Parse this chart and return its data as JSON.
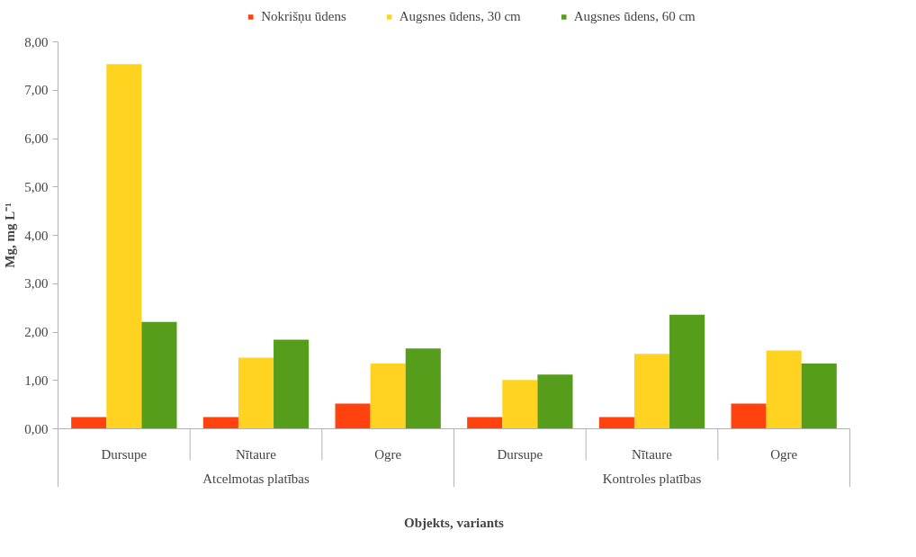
{
  "chart_data": {
    "type": "bar",
    "xlabel": "Objekts, variants",
    "ylabel": "Mg, mg L⁻¹",
    "categories": [
      "Dursupe",
      "Nītaure",
      "Ogre",
      "Dursupe",
      "Nītaure",
      "Ogre"
    ],
    "series": [
      {
        "name": "Nokrišņu ūdens",
        "color": "#ff420e",
        "values": [
          0.24,
          0.24,
          0.52,
          0.24,
          0.24,
          0.52
        ]
      },
      {
        "name": "Augsnes ūdens, 30 cm",
        "color": "#ffd320",
        "values": [
          7.54,
          1.47,
          1.35,
          1.01,
          1.55,
          1.62
        ]
      },
      {
        "name": "Augsnes ūdens, 60 cm",
        "color": "#579d1c",
        "values": [
          2.21,
          1.84,
          1.66,
          1.12,
          2.36,
          1.35
        ]
      }
    ],
    "annotations": [
      "Atcelmotas platības",
      "Kontroles platības"
    ],
    "ylim": [
      0,
      8
    ],
    "yticks": [
      {
        "value": 0,
        "label": "0,00"
      },
      {
        "value": 1,
        "label": "1,00"
      },
      {
        "value": 2,
        "label": "2,00"
      },
      {
        "value": 3,
        "label": "3,00"
      },
      {
        "value": 4,
        "label": "4,00"
      },
      {
        "value": 5,
        "label": "5,00"
      },
      {
        "value": 6,
        "label": "6,00"
      },
      {
        "value": 7,
        "label": "7,00"
      },
      {
        "value": 8,
        "label": "8,00"
      }
    ],
    "grid": false,
    "legend": "top"
  }
}
